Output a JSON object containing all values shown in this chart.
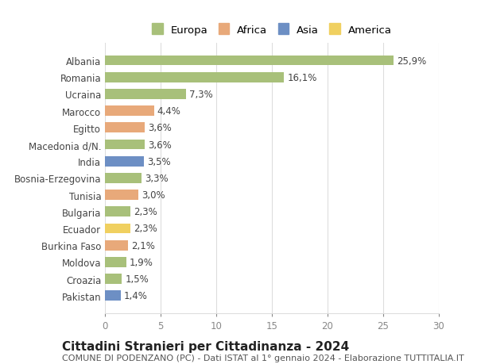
{
  "countries": [
    "Albania",
    "Romania",
    "Ucraina",
    "Marocco",
    "Egitto",
    "Macedonia d/N.",
    "India",
    "Bosnia-Erzegovina",
    "Tunisia",
    "Bulgaria",
    "Ecuador",
    "Burkina Faso",
    "Moldova",
    "Croazia",
    "Pakistan"
  ],
  "values": [
    25.9,
    16.1,
    7.3,
    4.4,
    3.6,
    3.6,
    3.5,
    3.3,
    3.0,
    2.3,
    2.3,
    2.1,
    1.9,
    1.5,
    1.4
  ],
  "labels": [
    "25,9%",
    "16,1%",
    "7,3%",
    "4,4%",
    "3,6%",
    "3,6%",
    "3,5%",
    "3,3%",
    "3,0%",
    "2,3%",
    "2,3%",
    "2,1%",
    "1,9%",
    "1,5%",
    "1,4%"
  ],
  "continents": [
    "Europa",
    "Europa",
    "Europa",
    "Africa",
    "Africa",
    "Europa",
    "Asia",
    "Europa",
    "Africa",
    "Europa",
    "America",
    "Africa",
    "Europa",
    "Europa",
    "Asia"
  ],
  "continent_colors": {
    "Europa": "#a8c07a",
    "Africa": "#e8a97a",
    "Asia": "#6d8fc4",
    "America": "#f0d060"
  },
  "legend_order": [
    "Europa",
    "Africa",
    "Asia",
    "America"
  ],
  "legend_colors": {
    "Europa": "#a8c07a",
    "Africa": "#e8a97a",
    "Asia": "#6d8fc4",
    "America": "#f0d060"
  },
  "xlim": [
    0,
    30
  ],
  "xticks": [
    0,
    5,
    10,
    15,
    20,
    25,
    30
  ],
  "title": "Cittadini Stranieri per Cittadinanza - 2024",
  "subtitle": "COMUNE DI PODENZANO (PC) - Dati ISTAT al 1° gennaio 2024 - Elaborazione TUTTITALIA.IT",
  "background_color": "#ffffff",
  "grid_color": "#dddddd",
  "bar_height": 0.6,
  "label_fontsize": 8.5,
  "tick_fontsize": 8.5,
  "title_fontsize": 11,
  "subtitle_fontsize": 8
}
